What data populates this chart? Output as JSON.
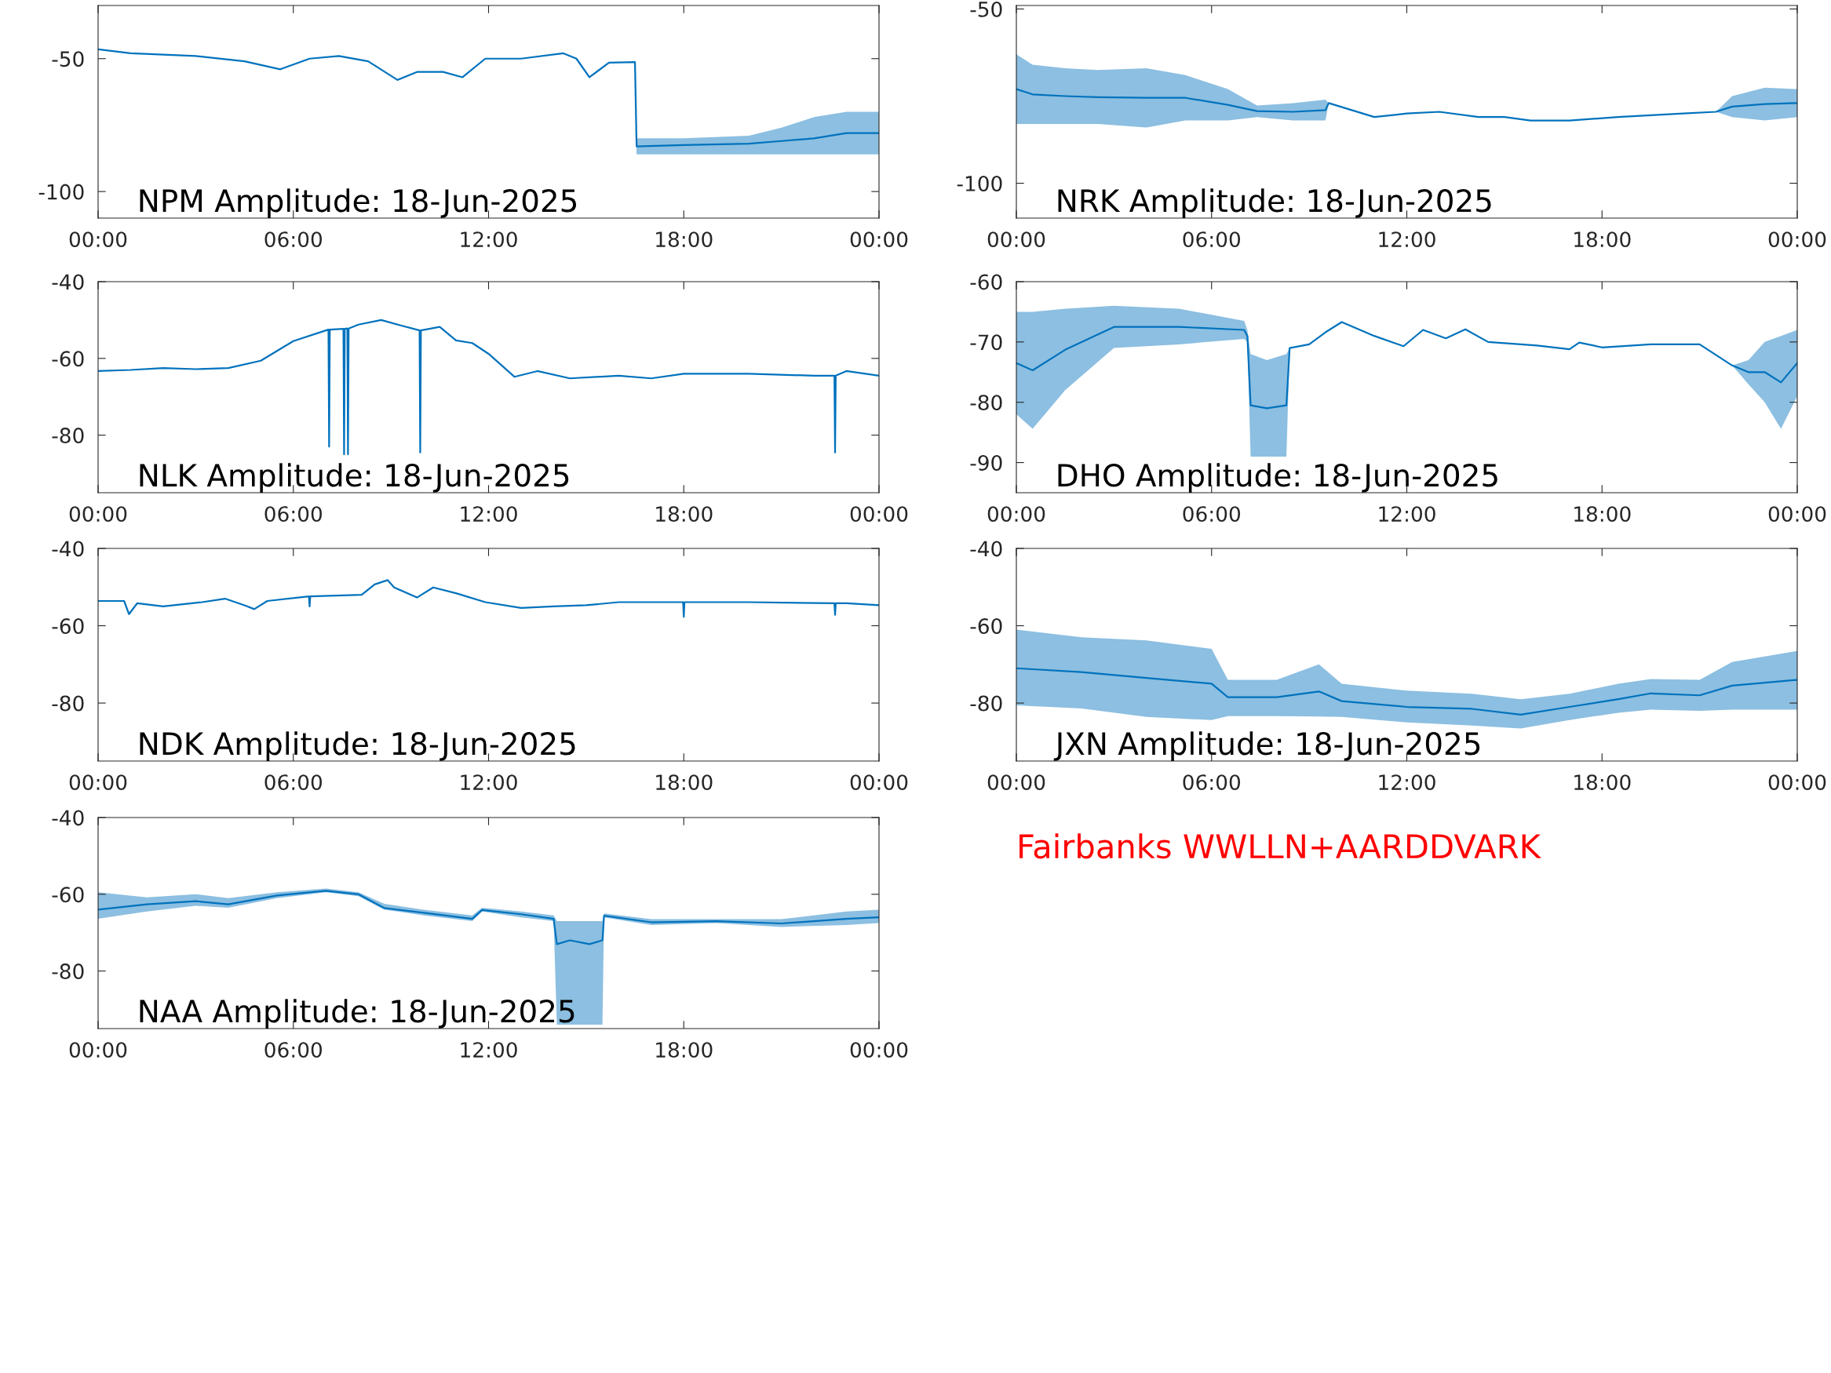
{
  "chart_data": [
    {
      "type": "line",
      "title": "NPM Amplitude: 18-Jun-2025",
      "xlim": [
        0,
        24
      ],
      "xticks": [
        {
          "value": 0,
          "label": "00:00"
        },
        {
          "value": 6,
          "label": "06:00"
        },
        {
          "value": 12,
          "label": "12:00"
        },
        {
          "value": 18,
          "label": "18:00"
        },
        {
          "value": 24,
          "label": "00:00"
        }
      ],
      "ylim": [
        -110,
        -30
      ],
      "yticks": [
        -50,
        -100
      ],
      "grid": false,
      "series": [
        {
          "color": "#0072bd",
          "x": [
            0,
            1,
            3,
            4.5,
            5.6,
            6.5,
            7.4,
            8.3,
            9.2,
            9.8,
            10.6,
            11.2,
            11.9,
            13,
            14.3,
            14.7,
            15.1,
            15.7,
            16.5,
            16.55,
            18,
            20,
            21,
            22,
            23,
            24
          ],
          "values": [
            -46.5,
            -48,
            -49,
            -51,
            -54,
            -50,
            -49,
            -51,
            -58,
            -55,
            -55,
            -57,
            -50,
            -50,
            -48,
            -50,
            -57,
            -51.5,
            -51.3,
            -83,
            -82.5,
            -82,
            -81,
            -80,
            -78,
            -78
          ],
          "lower": [
            -46.5,
            -48,
            -49,
            -51,
            -54,
            -50,
            -49,
            -51,
            -58,
            -55,
            -55,
            -57,
            -50,
            -50,
            -48,
            -50,
            -57,
            -51.5,
            -51.3,
            -86,
            -86,
            -86,
            -86,
            -86,
            -86,
            -86
          ],
          "upper": [
            -46.5,
            -48,
            -49,
            -51,
            -54,
            -50,
            -49,
            -51,
            -58,
            -55,
            -55,
            -57,
            -50,
            -50,
            -48,
            -50,
            -57,
            -51.5,
            -51.3,
            -80,
            -80,
            -79,
            -76,
            -72,
            -70,
            -70
          ]
        }
      ]
    },
    {
      "type": "line",
      "title": "NRK Amplitude: 18-Jun-2025",
      "xlim": [
        0,
        24
      ],
      "xticks": [
        {
          "value": 0,
          "label": "00:00"
        },
        {
          "value": 6,
          "label": "06:00"
        },
        {
          "value": 12,
          "label": "12:00"
        },
        {
          "value": 18,
          "label": "18:00"
        },
        {
          "value": 24,
          "label": "00:00"
        }
      ],
      "ylim": [
        -110,
        -49
      ],
      "yticks": [
        -50,
        -100
      ],
      "grid": false,
      "series": [
        {
          "color": "#0072bd",
          "x": [
            0,
            0.5,
            1.5,
            2.5,
            4,
            5.2,
            6.5,
            7.4,
            8.5,
            9.5,
            9.6,
            11,
            12,
            13,
            14.2,
            15,
            15.8,
            17,
            18.5,
            20.5,
            21.5,
            22,
            23,
            24
          ],
          "values": [
            -73,
            -74.5,
            -75,
            -75.3,
            -75.5,
            -75.5,
            -77.5,
            -79.3,
            -79.5,
            -79,
            -77,
            -81,
            -80,
            -79.5,
            -81,
            -81,
            -82,
            -82,
            -81,
            -80,
            -79.5,
            -78,
            -77.3,
            -77
          ],
          "lower": [
            -83,
            -83,
            -83,
            -83,
            -84,
            -82,
            -82,
            -81,
            -82,
            -82,
            -77,
            -81,
            -80,
            -79.5,
            -81,
            -81,
            -82,
            -82,
            -81,
            -80,
            -79.5,
            -81,
            -82,
            -81
          ],
          "upper": [
            -63,
            -66,
            -67,
            -67.5,
            -67,
            -69,
            -73,
            -77.7,
            -77,
            -76,
            -77,
            -81,
            -80,
            -79.5,
            -81,
            -81,
            -82,
            -82,
            -81,
            -80,
            -79.5,
            -75,
            -72.6,
            -73
          ]
        }
      ]
    },
    {
      "type": "line",
      "title": "NLK Amplitude: 18-Jun-2025",
      "xlim": [
        0,
        24
      ],
      "xticks": [
        {
          "value": 0,
          "label": "00:00"
        },
        {
          "value": 6,
          "label": "06:00"
        },
        {
          "value": 12,
          "label": "12:00"
        },
        {
          "value": 18,
          "label": "18:00"
        },
        {
          "value": 24,
          "label": "00:00"
        }
      ],
      "ylim": [
        -95,
        -40
      ],
      "yticks": [
        -40,
        -60,
        -80
      ],
      "grid": false,
      "series": [
        {
          "color": "#0072bd",
          "x": [
            0,
            1,
            2,
            3,
            4,
            5,
            6,
            7,
            7.08,
            7.1,
            7.12,
            7.54,
            7.56,
            7.58,
            7.66,
            7.68,
            7.7,
            8,
            8.7,
            9.3,
            9.88,
            9.9,
            9.92,
            10.5,
            11,
            11.5,
            12,
            12.8,
            13.5,
            14.5,
            16,
            17,
            18,
            20,
            22,
            22.63,
            22.65,
            22.67,
            23,
            24
          ],
          "values": [
            -63.3,
            -63,
            -62.5,
            -62.8,
            -62.5,
            -60.6,
            -55.5,
            -52.7,
            -52.5,
            -83,
            -52.5,
            -52.3,
            -85,
            -52.3,
            -52.2,
            -85,
            -52.2,
            -51.2,
            -50,
            -51.4,
            -52.7,
            -84.5,
            -52.7,
            -51.8,
            -55.3,
            -56,
            -58.8,
            -64.8,
            -63.3,
            -65.2,
            -64.5,
            -65.2,
            -64,
            -64,
            -64.5,
            -64.5,
            -84.5,
            -64.5,
            -63.3,
            -64.5
          ]
        }
      ]
    },
    {
      "type": "line",
      "title": "DHO Amplitude: 18-Jun-2025",
      "xlim": [
        0,
        24
      ],
      "xticks": [
        {
          "value": 0,
          "label": "00:00"
        },
        {
          "value": 6,
          "label": "06:00"
        },
        {
          "value": 12,
          "label": "12:00"
        },
        {
          "value": 18,
          "label": "18:00"
        },
        {
          "value": 24,
          "label": "00:00"
        }
      ],
      "ylim": [
        -95,
        -60
      ],
      "yticks": [
        -60,
        -70,
        -80,
        -90
      ],
      "grid": false,
      "series": [
        {
          "color": "#0072bd",
          "x": [
            0,
            0.5,
            1.5,
            3,
            5,
            7,
            7.1,
            7.2,
            7.7,
            8.3,
            8.4,
            9,
            9.5,
            10,
            11,
            11.9,
            12.5,
            13.2,
            13.8,
            14.5,
            16,
            17,
            17.3,
            18,
            19.5,
            21,
            22,
            22.5,
            23,
            23.5,
            24
          ],
          "values": [
            -73.5,
            -74.7,
            -71.3,
            -67.5,
            -67.5,
            -68,
            -69,
            -80.5,
            -81,
            -80.5,
            -71,
            -70.4,
            -68.4,
            -66.7,
            -69,
            -70.7,
            -68,
            -69.4,
            -67.9,
            -70,
            -70.6,
            -71.2,
            -70.1,
            -70.9,
            -70.4,
            -70.4,
            -73.9,
            -75,
            -75,
            -76.7,
            -73.5
          ],
          "lower": [
            -82,
            -84.4,
            -78,
            -71,
            -70.4,
            -69.5,
            -70,
            -89,
            -89,
            -89,
            -71,
            -70.4,
            -68.4,
            -66.7,
            -69,
            -70.7,
            -68,
            -69.4,
            -67.9,
            -70,
            -70.6,
            -71.2,
            -70.1,
            -70.9,
            -70.4,
            -70.4,
            -73.9,
            -77,
            -80,
            -84.4,
            -79
          ],
          "upper": [
            -65,
            -65,
            -64.5,
            -64,
            -64.5,
            -66.5,
            -68,
            -72,
            -73,
            -72,
            -71,
            -70.4,
            -68.4,
            -66.7,
            -69,
            -70.7,
            -68,
            -69.4,
            -67.9,
            -70,
            -70.6,
            -71.2,
            -70.1,
            -70.9,
            -70.4,
            -70.4,
            -73.9,
            -73,
            -70,
            -69,
            -68
          ]
        }
      ]
    },
    {
      "type": "line",
      "title": "NDK Amplitude: 18-Jun-2025",
      "xlim": [
        0,
        24
      ],
      "xticks": [
        {
          "value": 0,
          "label": "00:00"
        },
        {
          "value": 6,
          "label": "06:00"
        },
        {
          "value": 12,
          "label": "12:00"
        },
        {
          "value": 18,
          "label": "18:00"
        },
        {
          "value": 24,
          "label": "00:00"
        }
      ],
      "ylim": [
        -95,
        -40
      ],
      "yticks": [
        -40,
        -60,
        -80
      ],
      "grid": false,
      "series": [
        {
          "color": "#0072bd",
          "x": [
            0,
            0.8,
            0.95,
            1.2,
            2,
            3.2,
            3.9,
            4.5,
            4.8,
            5.2,
            6.48,
            6.5,
            6.52,
            8.1,
            8.5,
            8.9,
            9.1,
            9.8,
            10.3,
            11,
            11.9,
            13,
            14,
            15,
            16,
            17.98,
            18,
            18.02,
            20,
            22.63,
            22.65,
            22.67,
            23,
            24
          ],
          "values": [
            -53.6,
            -53.6,
            -57,
            -54.2,
            -55,
            -53.9,
            -53,
            -54.7,
            -55.7,
            -53.6,
            -52.4,
            -55,
            -52.4,
            -52,
            -49.3,
            -48.2,
            -50.1,
            -52.7,
            -50.1,
            -51.6,
            -53.9,
            -55.4,
            -55,
            -54.7,
            -53.9,
            -53.9,
            -57.7,
            -53.9,
            -53.9,
            -54.2,
            -57.2,
            -54.2,
            -54.2,
            -54.7
          ]
        }
      ]
    },
    {
      "type": "line",
      "title": "JXN Amplitude: 18-Jun-2025",
      "xlim": [
        0,
        24
      ],
      "xticks": [
        {
          "value": 0,
          "label": "00:00"
        },
        {
          "value": 6,
          "label": "06:00"
        },
        {
          "value": 12,
          "label": "12:00"
        },
        {
          "value": 18,
          "label": "18:00"
        },
        {
          "value": 24,
          "label": "00:00"
        }
      ],
      "ylim": [
        -95,
        -40
      ],
      "yticks": [
        -40,
        -60,
        -80
      ],
      "grid": false,
      "series": [
        {
          "color": "#0072bd",
          "x": [
            0,
            2,
            4,
            6,
            6.5,
            8,
            9.3,
            10,
            12,
            14,
            15.5,
            17,
            18.5,
            19.5,
            21,
            22,
            24
          ],
          "values": [
            -71,
            -72,
            -73.5,
            -75,
            -78.5,
            -78.5,
            -77,
            -79.5,
            -81,
            -81.5,
            -83,
            -81,
            -79,
            -77.5,
            -78,
            -75.5,
            -74
          ],
          "lower": [
            -80.6,
            -81.4,
            -83.6,
            -84.4,
            -83.4,
            -83.4,
            -83.5,
            -83.6,
            -85,
            -85.8,
            -86.6,
            -84.4,
            -82.5,
            -81.7,
            -82,
            -81.7,
            -81.7
          ],
          "upper": [
            -61,
            -63,
            -63.8,
            -66,
            -74,
            -74,
            -70,
            -75,
            -76.8,
            -77.6,
            -79,
            -77.6,
            -75,
            -73.8,
            -74,
            -69.4,
            -66.5
          ]
        }
      ]
    },
    {
      "type": "line",
      "title": "NAA Amplitude: 18-Jun-2025",
      "xlim": [
        0,
        24
      ],
      "xticks": [
        {
          "value": 0,
          "label": "00:00"
        },
        {
          "value": 6,
          "label": "06:00"
        },
        {
          "value": 12,
          "label": "12:00"
        },
        {
          "value": 18,
          "label": "18:00"
        },
        {
          "value": 24,
          "label": "00:00"
        }
      ],
      "ylim": [
        -95,
        -40
      ],
      "yticks": [
        -40,
        -60,
        -80
      ],
      "grid": false,
      "series": [
        {
          "color": "#0072bd",
          "x": [
            0,
            1.5,
            3,
            4,
            5.5,
            7,
            8,
            8.8,
            10,
            11.5,
            11.8,
            13,
            14,
            14.1,
            14.5,
            15.1,
            15.5,
            15.55,
            17,
            19,
            21,
            23,
            24
          ],
          "values": [
            -64,
            -62.6,
            -61.8,
            -62.6,
            -60.3,
            -59.1,
            -60,
            -63.6,
            -64.8,
            -66.4,
            -64.1,
            -65.2,
            -66.4,
            -73,
            -72,
            -73,
            -72,
            -65.6,
            -67.3,
            -67,
            -67.6,
            -66.4,
            -66
          ],
          "lower": [
            -66.4,
            -64.5,
            -63,
            -63.5,
            -61,
            -59.5,
            -60.5,
            -64,
            -65.5,
            -67,
            -64.5,
            -66,
            -67,
            -94,
            -94,
            -94,
            -94,
            -66,
            -68,
            -67.5,
            -68.5,
            -68,
            -67.5
          ],
          "upper": [
            -59.5,
            -60.8,
            -60,
            -61,
            -59.5,
            -58.5,
            -59.5,
            -62.5,
            -64,
            -65.5,
            -63.5,
            -64.5,
            -65.5,
            -67,
            -67,
            -67,
            -67,
            -65,
            -66.5,
            -66.5,
            -66.5,
            -64.5,
            -64
          ]
        }
      ]
    },
    {
      "type": "other",
      "annotations": [
        "Fairbanks WWLLN+AARDDVARK"
      ]
    }
  ]
}
